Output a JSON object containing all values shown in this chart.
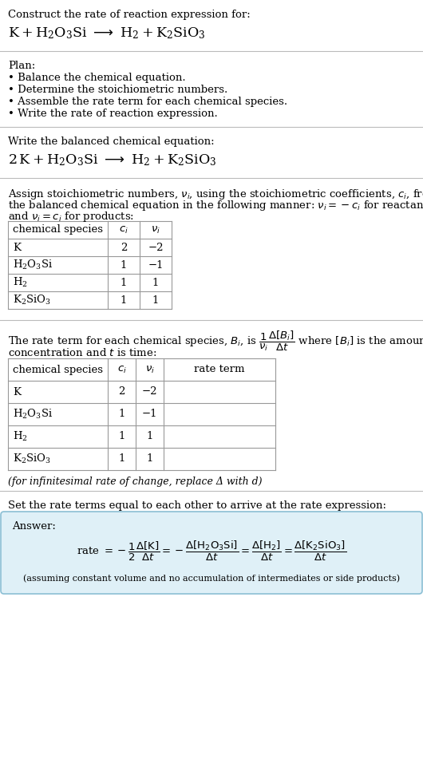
{
  "bg_color": "#ffffff",
  "text_color": "#000000",
  "font_size": 9.5,
  "title_line1": "Construct the rate of reaction expression for:",
  "plan_header": "Plan:",
  "plan_items": [
    "• Balance the chemical equation.",
    "• Determine the stoichiometric numbers.",
    "• Assemble the rate term for each chemical species.",
    "• Write the rate of reaction expression."
  ],
  "balanced_header": "Write the balanced chemical equation:",
  "stoich_intro_line1": "Assign stoichiometric numbers, ν_i, using the stoichiometric coefficients, c_i, from",
  "stoich_intro_line2": "the balanced chemical equation in the following manner: ν_i = −c_i for reactants",
  "stoich_intro_line3": "and ν_i = c_i for products:",
  "table1_headers": [
    "chemical species",
    "c_i",
    "ν_i"
  ],
  "table1_data": [
    [
      "K",
      "2",
      "−2"
    ],
    [
      "H_2O_3Si",
      "1",
      "−1"
    ],
    [
      "H_2",
      "1",
      "1"
    ],
    [
      "K_2SiO_3",
      "1",
      "1"
    ]
  ],
  "table2_headers": [
    "chemical species",
    "c_i",
    "ν_i",
    "rate term"
  ],
  "table2_data": [
    [
      "K",
      "2",
      "−2"
    ],
    [
      "H_2O_3Si",
      "1",
      "−1"
    ],
    [
      "H_2",
      "1",
      "1"
    ],
    [
      "K_2SiO_3",
      "1",
      "1"
    ]
  ],
  "infinitesimal_note": "(for infinitesimal rate of change, replace Δ with d)",
  "set_equal_text": "Set the rate terms equal to each other to arrive at the rate expression:",
  "answer_label": "Answer:",
  "answer_box_color": "#dff0f7",
  "answer_box_border": "#8bbfd4",
  "assuming_note": "(assuming constant volume and no accumulation of intermediates or side products)"
}
